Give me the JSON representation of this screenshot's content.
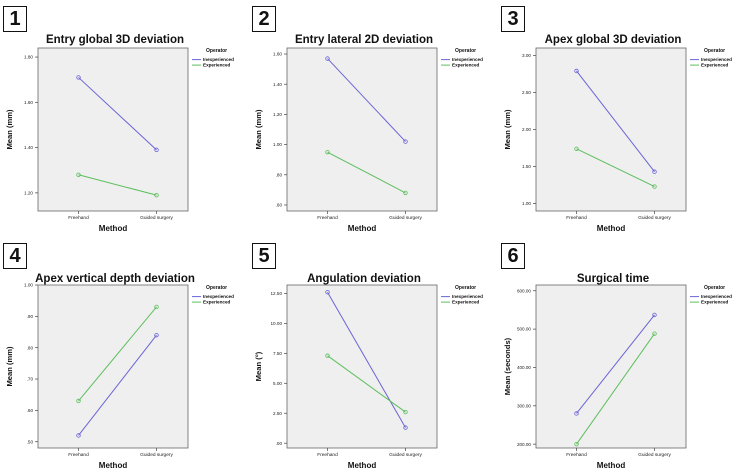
{
  "legend": {
    "title": "Operator",
    "entries": [
      "Inexperienced",
      "Experienced"
    ]
  },
  "colors": {
    "inexperienced": "#6a64d6",
    "experienced": "#5cbf5c",
    "plot_bg": "#efefef"
  },
  "panels": [
    {
      "number": "1",
      "title": "Entry global 3D deviation"
    },
    {
      "number": "2",
      "title": "Entry lateral 2D deviation"
    },
    {
      "number": "3",
      "title": "Apex global 3D deviation"
    },
    {
      "number": "4",
      "title": "Apex vertical depth deviation"
    },
    {
      "number": "5",
      "title": "Angulation deviation"
    },
    {
      "number": "6",
      "title": "Surgical time"
    }
  ],
  "chart_data": [
    {
      "type": "line",
      "title": "Entry global 3D deviation",
      "xlabel": "Method",
      "ylabel": "Mean (mm)",
      "categories": [
        "Freehand",
        "Guided surgery"
      ],
      "yticks": [
        1.2,
        1.4,
        1.6,
        1.8
      ],
      "ytick_labels": [
        "1.20",
        "1.40",
        "1.60",
        "1.80"
      ],
      "ylim": [
        1.12,
        1.84
      ],
      "series": [
        {
          "name": "Inexperienced",
          "values": [
            1.71,
            1.39
          ]
        },
        {
          "name": "Experienced",
          "values": [
            1.28,
            1.19
          ]
        }
      ]
    },
    {
      "type": "line",
      "title": "Entry lateral 2D deviation",
      "xlabel": "Method",
      "ylabel": "Mean (mm)",
      "categories": [
        "Freehand",
        "Guided surgery"
      ],
      "yticks": [
        0.6,
        0.8,
        1.0,
        1.2,
        1.4,
        1.6
      ],
      "ytick_labels": [
        ".60",
        ".80",
        "1.00",
        "1.20",
        "1.40",
        "1.60"
      ],
      "ylim": [
        0.56,
        1.64
      ],
      "series": [
        {
          "name": "Inexperienced",
          "values": [
            1.57,
            1.02
          ]
        },
        {
          "name": "Experienced",
          "values": [
            0.95,
            0.68
          ]
        }
      ]
    },
    {
      "type": "line",
      "title": "Apex global 3D deviation",
      "xlabel": "Method",
      "ylabel": "Mean (mm)",
      "categories": [
        "Freehand",
        "Guided surgery"
      ],
      "yticks": [
        1.0,
        1.5,
        2.0,
        2.5,
        3.0
      ],
      "ytick_labels": [
        "1.00",
        "1.50",
        "2.00",
        "2.50",
        "3.00"
      ],
      "ylim": [
        0.9,
        3.1
      ],
      "series": [
        {
          "name": "Inexperienced",
          "values": [
            2.79,
            1.43
          ]
        },
        {
          "name": "Experienced",
          "values": [
            1.74,
            1.23
          ]
        }
      ]
    },
    {
      "type": "line",
      "title": "Apex vertical depth deviation",
      "xlabel": "Method",
      "ylabel": "Mean (mm)",
      "categories": [
        "Freehand",
        "Guided surgery"
      ],
      "yticks": [
        0.5,
        0.6,
        0.7,
        0.8,
        0.9,
        1.0
      ],
      "ytick_labels": [
        ".50",
        ".60",
        ".70",
        ".80",
        ".90",
        "1.00"
      ],
      "ylim": [
        0.48,
        1.0
      ],
      "series": [
        {
          "name": "Inexperienced",
          "values": [
            0.52,
            0.84
          ]
        },
        {
          "name": "Experienced",
          "values": [
            0.63,
            0.93
          ]
        }
      ]
    },
    {
      "type": "line",
      "title": "Angulation deviation",
      "xlabel": "Method",
      "ylabel": "Mean (°)",
      "categories": [
        "Freehand",
        "Guided surgery"
      ],
      "yticks": [
        0,
        2.5,
        5.0,
        7.5,
        10.0,
        12.5
      ],
      "ytick_labels": [
        ".00",
        "2.50",
        "5.00",
        "7.50",
        "10.00",
        "12.50"
      ],
      "ylim": [
        -0.4,
        13.2
      ],
      "series": [
        {
          "name": "Inexperienced",
          "values": [
            12.6,
            1.3
          ]
        },
        {
          "name": "Experienced",
          "values": [
            7.3,
            2.6
          ]
        }
      ]
    },
    {
      "type": "line",
      "title": "Surgical time",
      "xlabel": "Method",
      "ylabel": "Mean (seconds)",
      "categories": [
        "Freehand",
        "Guided surgery"
      ],
      "yticks": [
        200,
        300,
        400,
        500,
        600
      ],
      "ytick_labels": [
        "200.00",
        "300.00",
        "400.00",
        "500.00",
        "600.00"
      ],
      "ylim": [
        190,
        615
      ],
      "series": [
        {
          "name": "Inexperienced",
          "values": [
            280,
            537
          ]
        },
        {
          "name": "Experienced",
          "values": [
            200,
            488
          ]
        }
      ]
    }
  ]
}
